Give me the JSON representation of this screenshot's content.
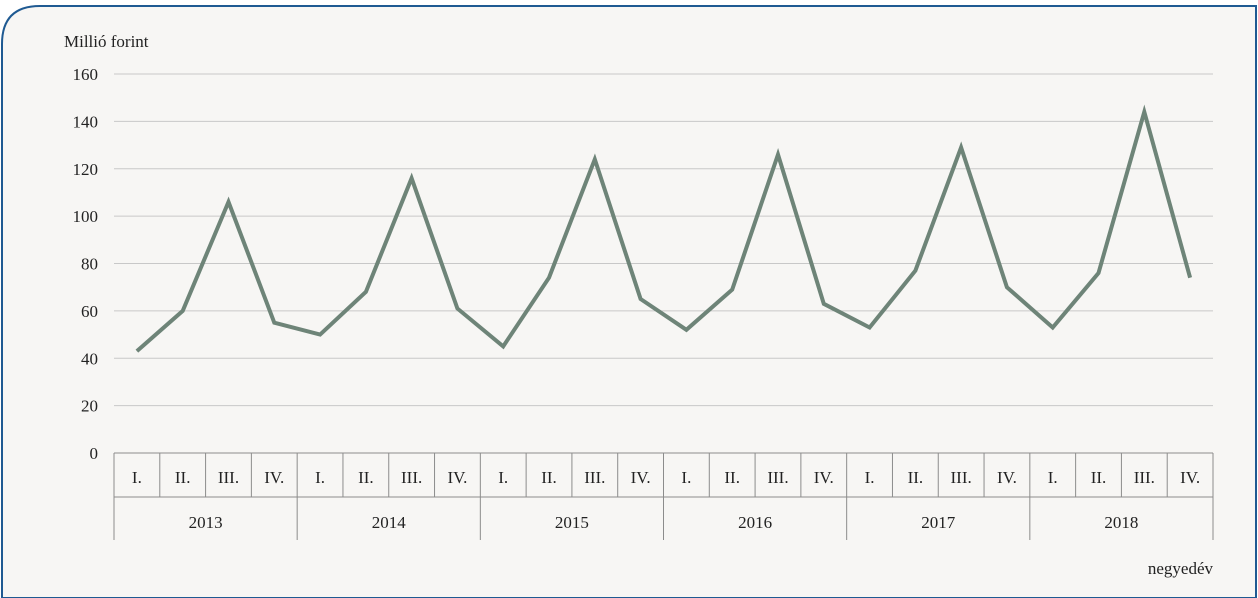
{
  "chart_data": {
    "type": "line",
    "ylabel": "Millió forint",
    "xlabel": "negyedév",
    "ylim": [
      0,
      160
    ],
    "yticks": [
      0,
      20,
      40,
      60,
      80,
      100,
      120,
      140,
      160
    ],
    "grid": true,
    "years": [
      "2013",
      "2014",
      "2015",
      "2016",
      "2017",
      "2018"
    ],
    "quarters": [
      "I.",
      "II.",
      "III.",
      "IV."
    ],
    "series": [
      {
        "values": [
          43,
          60,
          106,
          55,
          50,
          68,
          116,
          61,
          45,
          74,
          124,
          65,
          52,
          69,
          126,
          63,
          53,
          77,
          129,
          70,
          53,
          76,
          144,
          74
        ]
      }
    ]
  },
  "colors": {
    "border": "#1f5a92",
    "panel": "#f7f6f4",
    "line": "#6e8478",
    "grid": "#c8c8c8",
    "axis": "#8c8c8c"
  }
}
